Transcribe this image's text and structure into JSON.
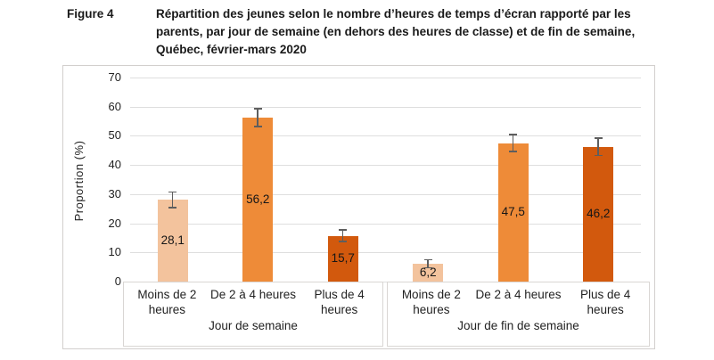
{
  "header": {
    "figure_label": "Figure 4",
    "title": "Répartition des jeunes selon le nombre d’heures de temps d’écran rapporté par les parents, par jour de semaine (en dehors des heures de classe) et de fin de semaine, Québec, février-mars 2020"
  },
  "chart_data": {
    "type": "bar",
    "title": "Répartition des jeunes selon le nombre d’heures de temps d’écran rapporté par les parents, par jour de semaine (en dehors des heures de classe) et de fin de semaine, Québec, février-mars 2020",
    "ylabel": "Proportion (%)",
    "ylim": [
      0,
      70
    ],
    "yticks": [
      0,
      10,
      20,
      30,
      40,
      50,
      60,
      70
    ],
    "grid": true,
    "legend_position": "none",
    "categories": [
      "Moins de 2 heures",
      "De 2 à 4 heures",
      "Plus de 4 heures"
    ],
    "groups": [
      {
        "label": "Jour de semaine",
        "values": [
          28.1,
          56.2,
          15.7
        ],
        "value_labels": [
          "28,1",
          "56,2",
          "15,7"
        ],
        "errors": [
          2.9,
          3.3,
          2.2
        ]
      },
      {
        "label": "Jour de fin de semaine",
        "values": [
          6.2,
          47.5,
          46.2
        ],
        "value_labels": [
          "6,2",
          "47,5",
          "46,2"
        ],
        "errors": [
          1.6,
          3.2,
          3.2
        ]
      }
    ],
    "bar_colors": [
      "#F3C39D",
      "#EE8B38",
      "#D2590D"
    ],
    "error_bar_color": "#5E5E5E",
    "gridline_color": "#DEDEDE"
  }
}
